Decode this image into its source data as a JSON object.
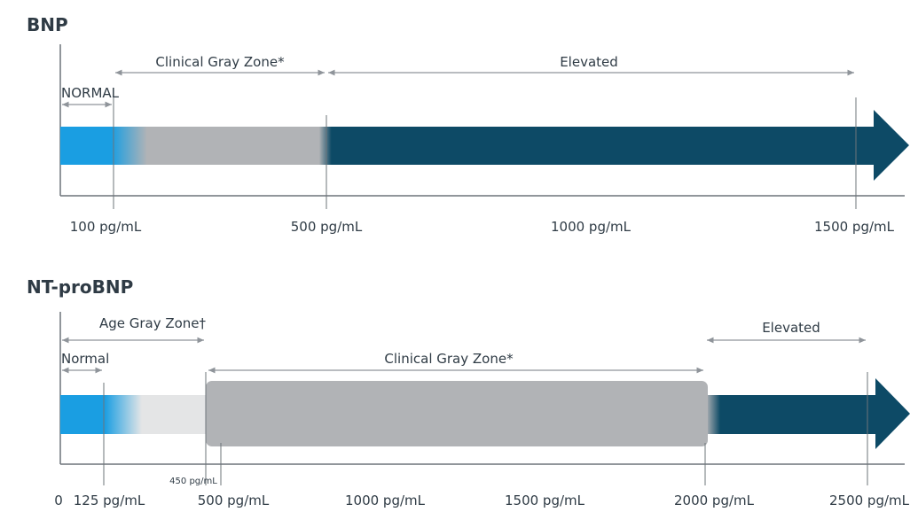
{
  "colors": {
    "normal_blue": "#1a9ee2",
    "elevated_navy": "#0d4a66",
    "clinical_gray": "#b1b3b6",
    "age_gray": "#e4e5e6",
    "axis": "#6d747a",
    "text": "#2f3b45",
    "bracket": "#8f949a"
  },
  "bnp": {
    "title": "BNP",
    "zones": {
      "normal": "NORMAL",
      "clinical_gray": "Clinical Gray Zone*",
      "elevated": "Elevated"
    },
    "ticks": [
      "100 pg/mL",
      "500 pg/mL",
      "1000 pg/mL",
      "1500 pg/mL"
    ]
  },
  "ntprobnp": {
    "title": "NT-proBNP",
    "zones": {
      "normal": "Normal",
      "age_gray": "Age Gray Zone†",
      "clinical_gray": "Clinical Gray Zone*",
      "elevated": "Elevated"
    },
    "ticks": {
      "t0": "0",
      "t125": "125 pg/mL",
      "t450": "450 pg/mL",
      "t500": "500 pg/mL",
      "t1000": "1000 pg/mL",
      "t1500": "1500 pg/mL",
      "t2000": "2000 pg/mL",
      "t2500": "2500 pg/mL"
    }
  }
}
